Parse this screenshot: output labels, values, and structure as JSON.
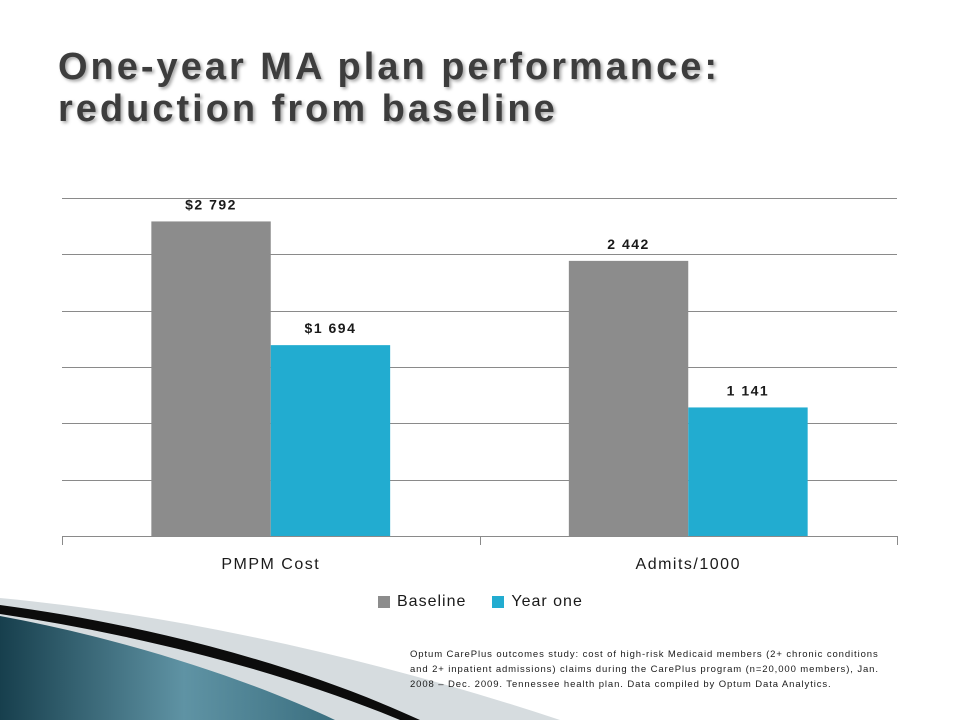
{
  "colors": {
    "grid": "#8a8a8a"
  },
  "chart_data": {
    "type": "bar",
    "title": "One-year MA plan performance: reduction from baseline",
    "categories": [
      "PMPM Cost",
      "Admits/1000"
    ],
    "series": [
      {
        "name": "Baseline",
        "color": "#8c8c8c",
        "values": [
          2792,
          2442
        ],
        "labels": [
          "$2 792",
          "2 442"
        ]
      },
      {
        "name": "Year one",
        "color": "#22acd0",
        "values": [
          1694,
          1141
        ],
        "labels": [
          "$1 694",
          "1 141"
        ]
      }
    ],
    "ylim": [
      0,
      3000
    ],
    "y_grid_step": 500,
    "y_tick_labels": false,
    "grid": true,
    "legend": "bottom"
  },
  "footnote": {
    "lines": [
      "Optum CarePlus outcomes study: cost of high-risk Medicaid members (2+ chronic conditions",
      "and 2+ inpatient admissions) claims during the CarePlus program (n=20,000 members), Jan.",
      "2008 – Dec. 2009. Tennessee health plan. Data compiled by Optum Data Analytics."
    ]
  }
}
